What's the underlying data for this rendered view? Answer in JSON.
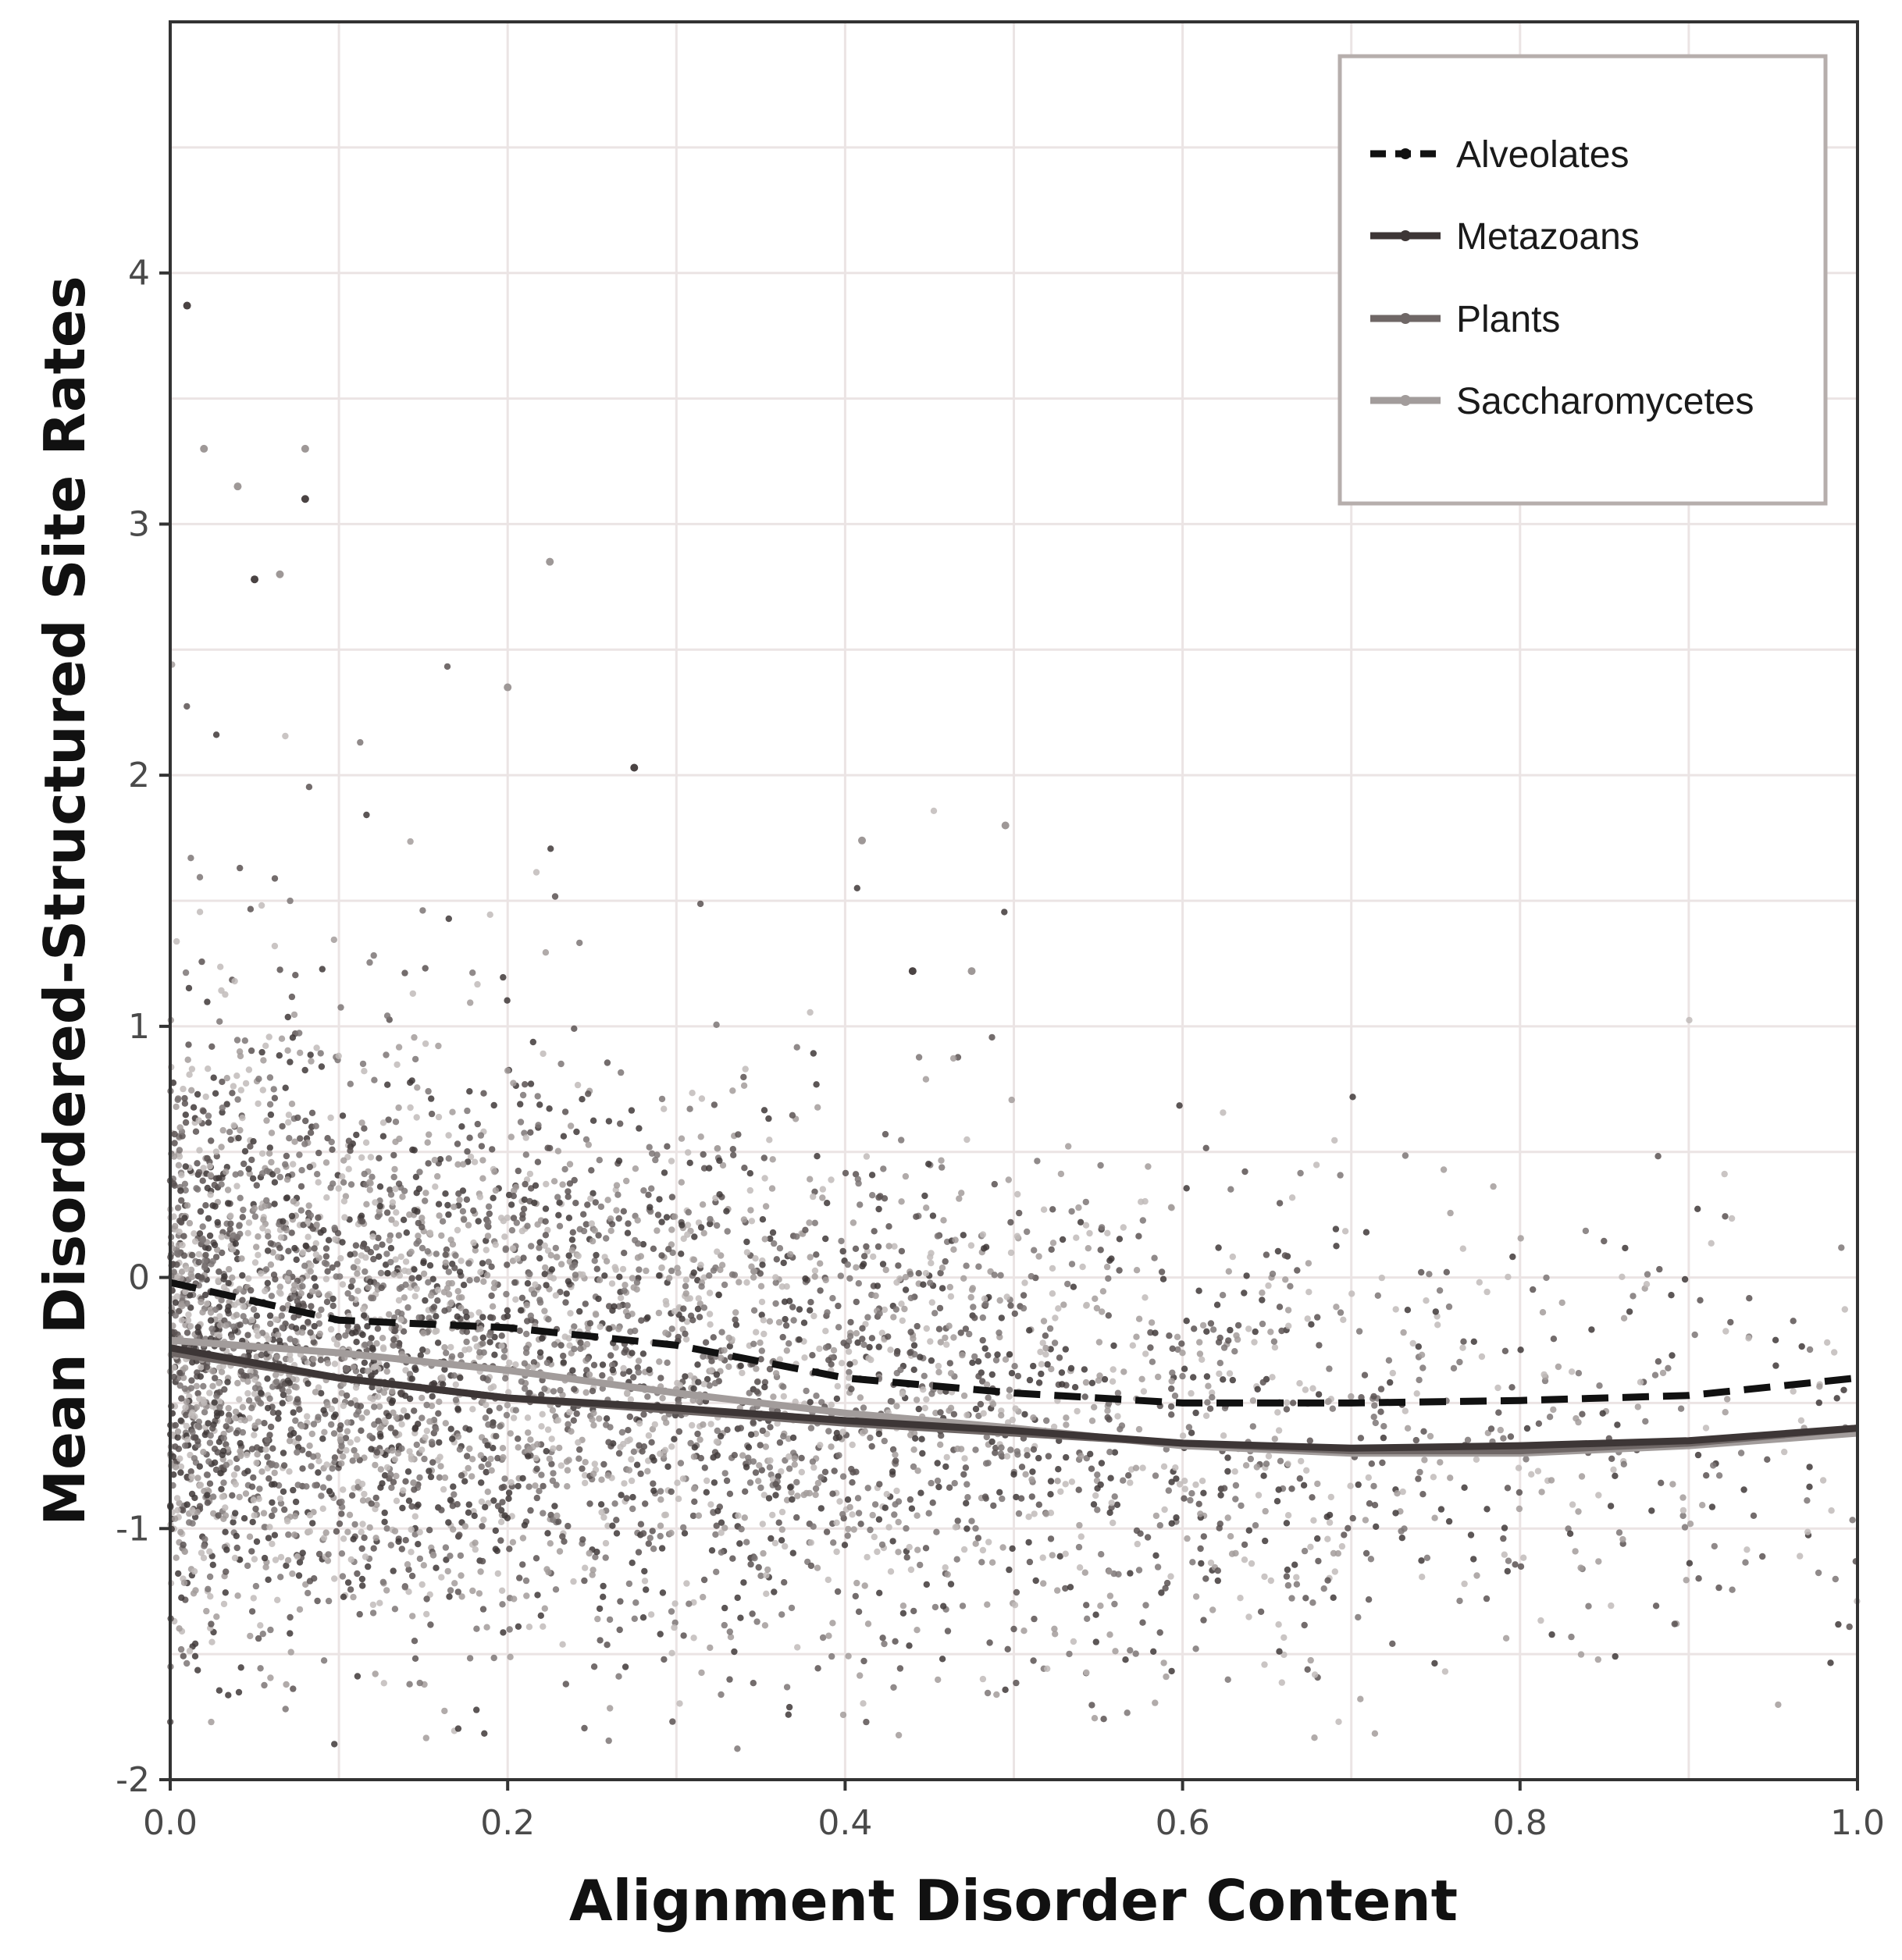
{
  "chart_data": {
    "type": "scatter",
    "xlabel": "Alignment Disorder Content",
    "ylabel": "Mean Disordered-Structured Site Rates",
    "xlim": [
      0.0,
      1.0
    ],
    "ylim": [
      -2,
      5
    ],
    "x_ticks": [
      "0.0",
      "0.2",
      "0.4",
      "0.6",
      "0.8",
      "1.0"
    ],
    "y_ticks": [
      "-2",
      "-1",
      "0",
      "1",
      "2",
      "3",
      "4"
    ],
    "grid": true,
    "legend_position": "top-right",
    "colors": {
      "Alveolates": "#111111",
      "Metazoans": "#3d3636",
      "Plants": "#6f6766",
      "Saccharomycetes": "#a29c9b"
    },
    "series": [
      {
        "name": "Alveolates",
        "style": "dashed",
        "x": [
          0.0,
          0.1,
          0.2,
          0.3,
          0.4,
          0.5,
          0.6,
          0.7,
          0.8,
          0.9,
          1.0
        ],
        "y": [
          -0.02,
          -0.17,
          -0.2,
          -0.27,
          -0.4,
          -0.46,
          -0.5,
          -0.5,
          -0.49,
          -0.47,
          -0.4
        ]
      },
      {
        "name": "Metazoans",
        "style": "solid",
        "x": [
          0.0,
          0.1,
          0.2,
          0.3,
          0.4,
          0.5,
          0.6,
          0.7,
          0.8,
          0.9,
          1.0
        ],
        "y": [
          -0.28,
          -0.4,
          -0.48,
          -0.52,
          -0.57,
          -0.61,
          -0.66,
          -0.68,
          -0.67,
          -0.65,
          -0.6
        ]
      },
      {
        "name": "Plants",
        "style": "solid",
        "x": [
          0.0,
          0.1,
          0.2,
          0.3,
          0.4,
          0.5,
          0.6,
          0.7,
          0.8,
          0.9,
          1.0
        ],
        "y": [
          -0.3,
          -0.4,
          -0.48,
          -0.53,
          -0.58,
          -0.62,
          -0.66,
          -0.69,
          -0.69,
          -0.66,
          -0.6
        ]
      },
      {
        "name": "Saccharomycetes",
        "style": "solid",
        "x": [
          0.0,
          0.1,
          0.2,
          0.3,
          0.4,
          0.5,
          0.6,
          0.7,
          0.8,
          0.9,
          1.0
        ],
        "y": [
          -0.25,
          -0.3,
          -0.37,
          -0.46,
          -0.54,
          -0.6,
          -0.67,
          -0.7,
          -0.7,
          -0.67,
          -0.62
        ]
      }
    ],
    "outliers": {
      "x": [
        0.01,
        0.02,
        0.04,
        0.05,
        0.065,
        0.08,
        0.08,
        0.225,
        0.2,
        0.275,
        0.41,
        0.495,
        0.44,
        0.475
      ],
      "y": [
        3.87,
        3.3,
        3.15,
        2.78,
        2.8,
        3.3,
        3.1,
        2.85,
        2.35,
        2.03,
        1.74,
        1.8,
        1.22,
        1.22
      ]
    },
    "point_cloud": {
      "mean_trend": {
        "x": [
          0.0,
          0.1,
          0.2,
          0.3,
          0.4,
          0.5,
          0.6,
          0.7,
          0.8,
          0.9,
          1.0
        ],
        "y": [
          -0.25,
          -0.28,
          -0.32,
          -0.4,
          -0.5,
          -0.56,
          -0.62,
          -0.65,
          -0.64,
          -0.6,
          -0.55
        ]
      },
      "spread_sd": 0.45,
      "density": [
        1.0,
        0.95,
        0.85,
        0.72,
        0.58,
        0.45,
        0.33,
        0.24,
        0.16,
        0.11,
        0.08
      ]
    }
  }
}
